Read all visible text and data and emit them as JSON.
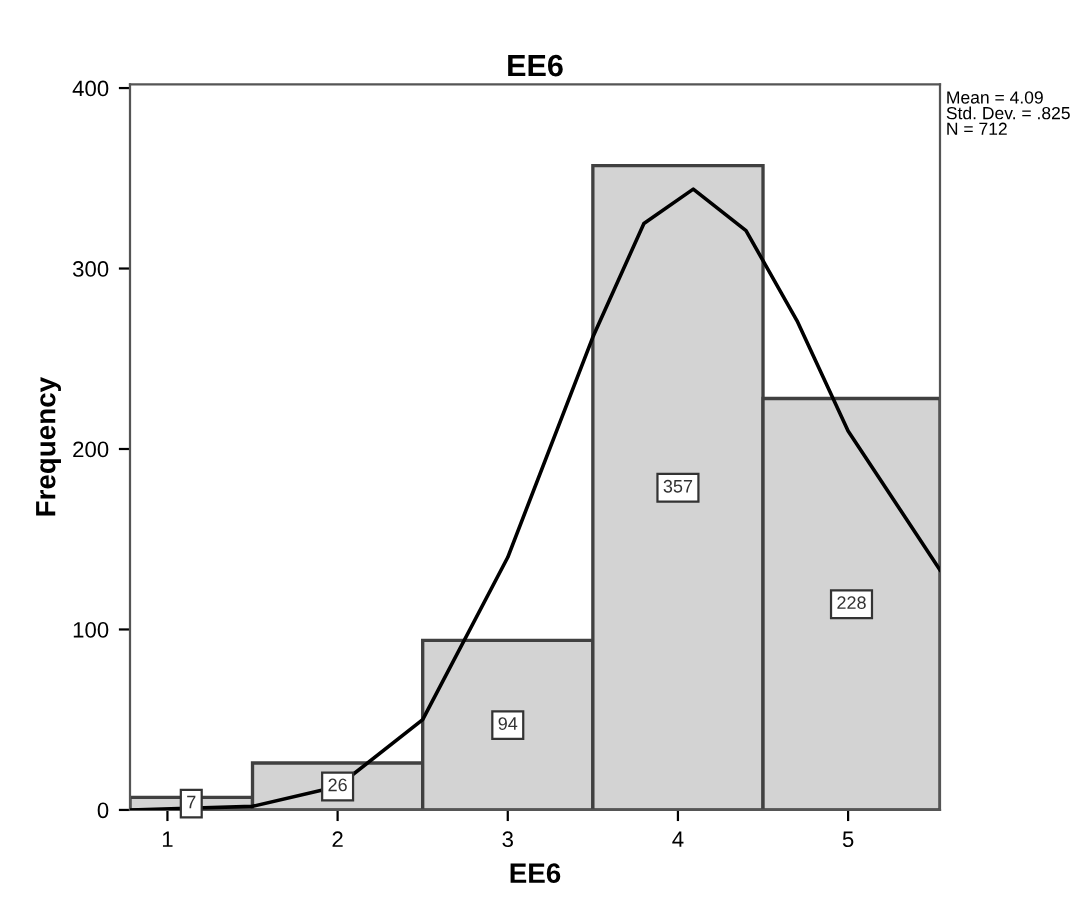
{
  "chart_data": {
    "type": "histogram",
    "title": "EE6",
    "xlabel": "EE6",
    "ylabel": "Frequency",
    "bins": [
      0.78,
      1.5,
      2.5,
      3.5,
      4.5,
      5.54
    ],
    "values": [
      7,
      26,
      94,
      357,
      228
    ],
    "color": "#d3d3d3",
    "value_labels": [
      "7",
      "26",
      "94",
      "357",
      "228"
    ],
    "series": [
      {
        "type": "line",
        "color": "#000000",
        "x": [
          0.78,
          1.5,
          2.0,
          2.5,
          3.0,
          3.5,
          3.8,
          4.09,
          4.4,
          4.7,
          5.0,
          5.54
        ],
        "values": [
          0,
          2,
          13,
          50,
          140,
          262,
          325,
          344,
          321,
          271,
          210,
          133
        ]
      }
    ],
    "xlim": [
      0.78,
      5.54
    ],
    "ylim": [
      0,
      402
    ],
    "xticks": [
      1,
      2,
      3,
      4,
      5
    ],
    "yticks": [
      0,
      100,
      200,
      300,
      400
    ],
    "grid": false,
    "annotations": [
      "Mean = 4.09\nStd. Dev. = .825\nN = 712"
    ]
  }
}
